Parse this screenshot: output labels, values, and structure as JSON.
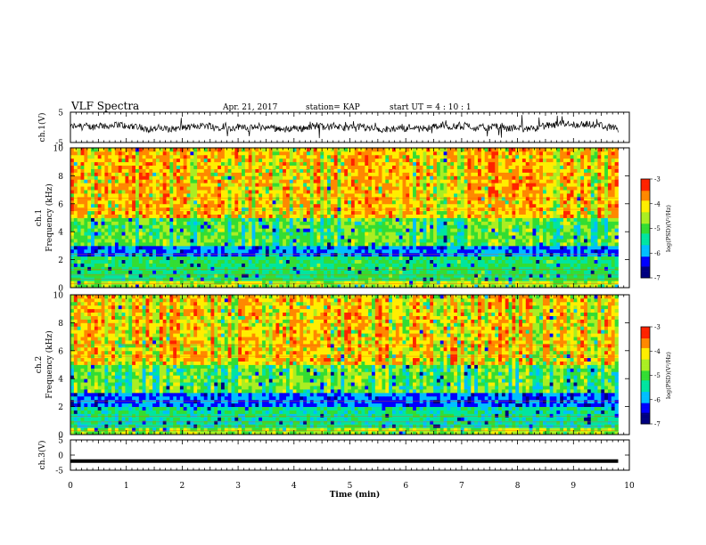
{
  "header": {
    "title": "VLF Spectra",
    "date": "Apr. 21, 2017",
    "station": "station= KAP",
    "start": "start  UT =   4 : 10 : 1"
  },
  "colors": {
    "background": "#ffffff",
    "axes": "#000000",
    "trace": "#000000",
    "colormap": [
      "#000080",
      "#0000ff",
      "#00bfff",
      "#00e5a0",
      "#33dd33",
      "#aaee22",
      "#ffee00",
      "#ff8800",
      "#ff2200"
    ]
  },
  "chart_data": [
    {
      "type": "line",
      "panel": "ch1-waveform",
      "ylabel": "ch.1(V)",
      "yticks": [
        "5",
        "-5"
      ],
      "ylim": [
        -5,
        5
      ],
      "xlim": [
        0,
        10
      ],
      "description_values": {
        "typical_level": 0.0,
        "amplitude": 4.0
      }
    },
    {
      "type": "heatmap",
      "panel": "ch1-spectrogram",
      "ylabel": "ch.1\nFrequency (kHz)",
      "ylabel_line1": "ch.1",
      "ylabel_line2": "Frequency (kHz)",
      "yticks": [
        "0",
        "2",
        "4",
        "6",
        "8",
        "10"
      ],
      "ylim": [
        0,
        10
      ],
      "xlim": [
        0,
        9.8
      ],
      "colorbar": {
        "label": "log(PSD)(V²/Hz)",
        "ticks": [
          "-3",
          "-4",
          "-5",
          "-6",
          "-7"
        ],
        "range": [
          -7,
          -3
        ]
      },
      "bands": [
        {
          "freq_khz": [
            0,
            0.5
          ],
          "log_psd": -4.5
        },
        {
          "freq_khz": [
            0.5,
            2.2
          ],
          "log_psd": -5.2
        },
        {
          "freq_khz": [
            2.2,
            3.0
          ],
          "log_psd": -6.0
        },
        {
          "freq_khz": [
            3.0,
            5.0
          ],
          "log_psd": -4.8
        },
        {
          "freq_khz": [
            5.0,
            10.0
          ],
          "log_psd": -3.8
        }
      ]
    },
    {
      "type": "heatmap",
      "panel": "ch2-spectrogram",
      "ylabel_line1": "ch.2",
      "ylabel_line2": "Frequency (kHz)",
      "yticks": [
        "0",
        "2",
        "4",
        "6",
        "8",
        "10"
      ],
      "ylim": [
        0,
        10
      ],
      "xlim": [
        0,
        9.8
      ],
      "colorbar": {
        "label": "log(PSD)(V²/Hz)",
        "ticks": [
          "-3",
          "-4",
          "-5",
          "-6",
          "-7"
        ],
        "range": [
          -7,
          -3
        ]
      },
      "bands": [
        {
          "freq_khz": [
            0,
            0.5
          ],
          "log_psd": -4.6
        },
        {
          "freq_khz": [
            0.5,
            2.0
          ],
          "log_psd": -5.4
        },
        {
          "freq_khz": [
            2.0,
            3.0
          ],
          "log_psd": -6.1
        },
        {
          "freq_khz": [
            3.0,
            5.0
          ],
          "log_psd": -4.7
        },
        {
          "freq_khz": [
            5.0,
            10.0
          ],
          "log_psd": -3.8
        }
      ]
    },
    {
      "type": "line",
      "panel": "ch3-waveform",
      "ylabel": "ch.3(V)",
      "yticks": [
        "5",
        "0",
        "-5"
      ],
      "ylim": [
        -5,
        5
      ],
      "xlim": [
        0,
        10
      ],
      "level": -2.0
    }
  ],
  "xaxis": {
    "label": "Time (min)",
    "ticks": [
      "0",
      "1",
      "2",
      "3",
      "4",
      "5",
      "6",
      "7",
      "8",
      "9",
      "10"
    ],
    "range": [
      0,
      10
    ]
  }
}
